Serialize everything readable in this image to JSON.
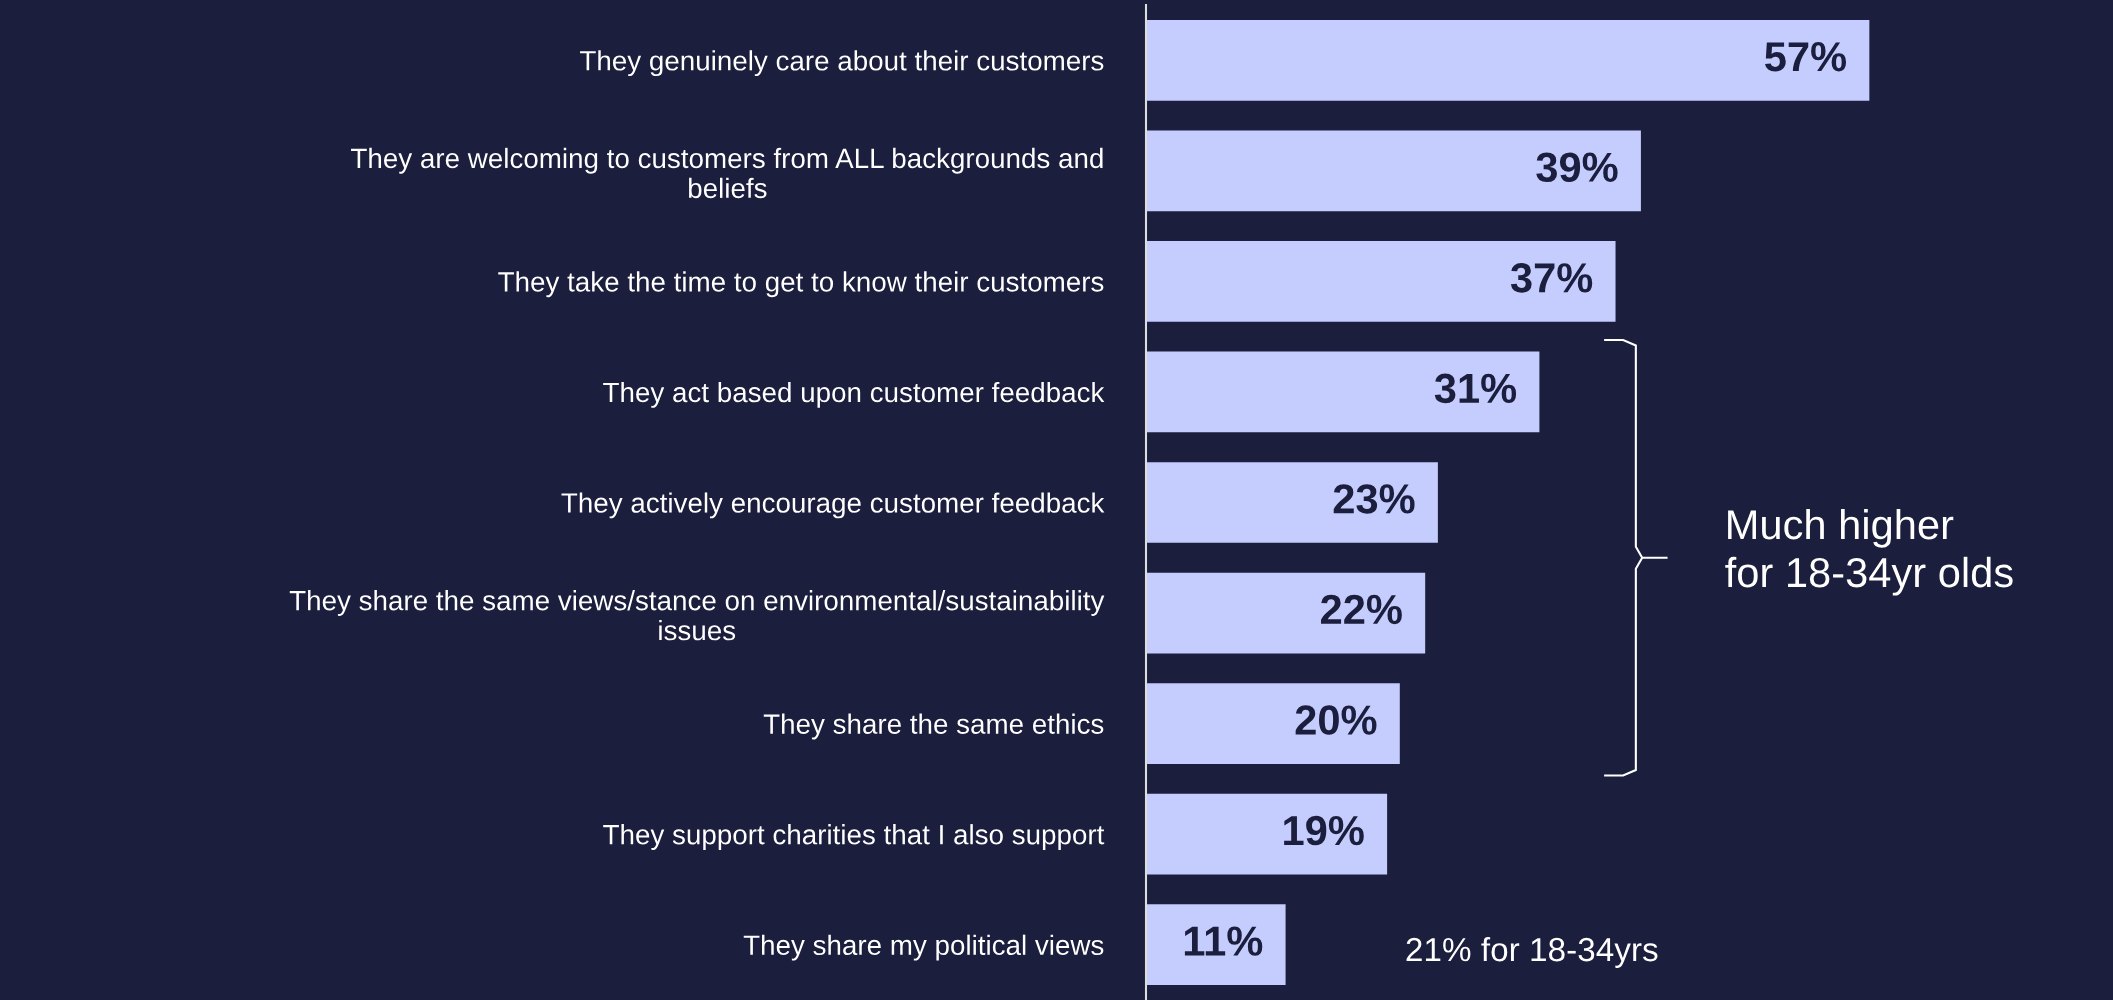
{
  "chart_data": {
    "type": "bar",
    "orientation": "horizontal",
    "categories": [
      "They genuinely care about their customers",
      "They are welcoming to customers from ALL backgrounds and\nbeliefs",
      "They take the time to get to know their customers",
      "They act based upon customer feedback",
      "They actively encourage customer feedback",
      "They share the same views/stance on environmental/sustainability\nissues",
      "They share the same ethics",
      "They support charities that I also support",
      "They share my political views"
    ],
    "values": [
      57,
      39,
      37,
      31,
      23,
      22,
      20,
      19,
      11
    ],
    "value_labels": [
      "57%",
      "39%",
      "37%",
      "31%",
      "23%",
      "22%",
      "20%",
      "19%",
      "11%"
    ],
    "color": "#c5cdfe",
    "xlim": [
      0,
      76.2
    ],
    "tick_labels": "y",
    "grid": false,
    "legend": false,
    "annotations": [
      "Much higher\nfor 18-34yr olds",
      "21% for 18-34yrs"
    ]
  }
}
